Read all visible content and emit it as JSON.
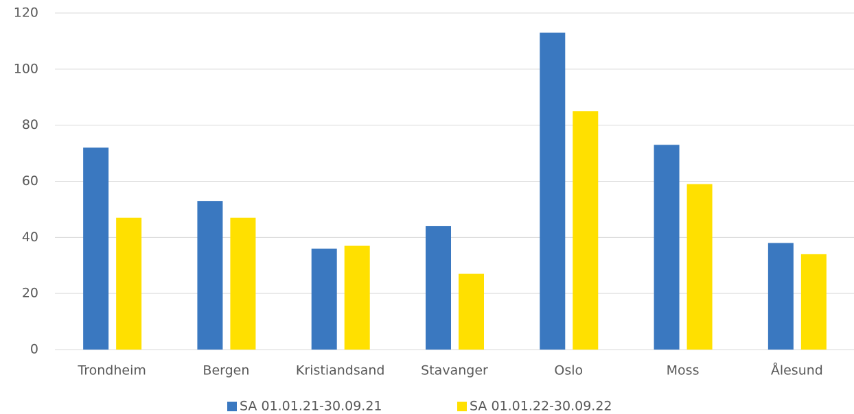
{
  "chart_data": {
    "type": "bar",
    "categories": [
      "Trondheim",
      "Bergen",
      "Kristiandsand",
      "Stavanger",
      "Oslo",
      "Moss",
      "Ålesund"
    ],
    "series": [
      {
        "name": "SA 01.01.21-30.09.21",
        "color": "#3a78c0",
        "values": [
          72,
          53,
          36,
          44,
          113,
          73,
          38
        ]
      },
      {
        "name": "SA 01.01.22-30.09.22",
        "color": "#ffe000",
        "values": [
          47,
          47,
          37,
          27,
          85,
          59,
          34
        ]
      }
    ],
    "ylim": [
      0,
      120
    ],
    "yticks": [
      0,
      20,
      40,
      60,
      80,
      100,
      120
    ],
    "grid": true,
    "legend": "bottom"
  }
}
